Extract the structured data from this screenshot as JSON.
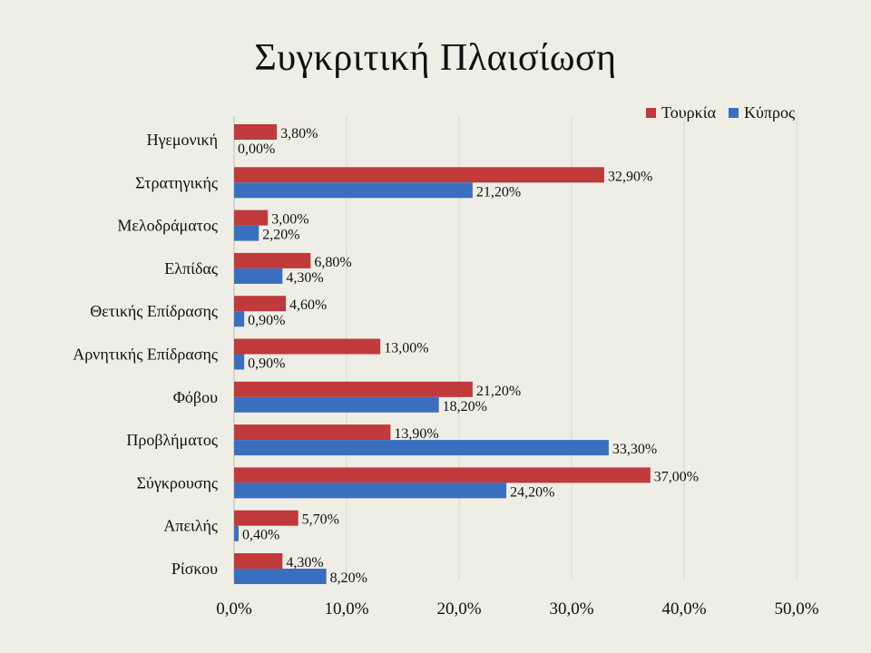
{
  "chart_data": {
    "type": "bar",
    "orientation": "horizontal",
    "title": "Συγκριτική Πλαισίωση",
    "categories": [
      "Ηγεμονική",
      "Στρατηγικής",
      "Μελοδράματος",
      "Ελπίδας",
      "Θετικής Επίδρασης",
      "Αρνητικής Επίδρασης",
      "Φόβου",
      "Προβλήματος",
      "Σύγκρουσης",
      "Απειλής",
      "Ρίσκου"
    ],
    "series": [
      {
        "name": "Τουρκία",
        "color": "#c0393b",
        "values": [
          3.8,
          32.9,
          3.0,
          6.8,
          4.6,
          13.0,
          21.2,
          13.9,
          37.0,
          5.7,
          4.3
        ],
        "labels": [
          "3,80%",
          "32,90%",
          "3,00%",
          "6,80%",
          "4,60%",
          "13,00%",
          "21,20%",
          "13,90%",
          "37,00%",
          "5,70%",
          "4,30%"
        ]
      },
      {
        "name": "Κύπρος",
        "color": "#3a6fc0",
        "values": [
          0.0,
          21.2,
          2.2,
          4.3,
          0.9,
          0.9,
          18.2,
          33.3,
          24.2,
          0.4,
          8.2
        ],
        "labels": [
          "0,00%",
          "21,20%",
          "2,20%",
          "4,30%",
          "0,90%",
          "0,90%",
          "18,20%",
          "33,30%",
          "24,20%",
          "0,40%",
          "8,20%"
        ]
      }
    ],
    "xlim": [
      0,
      50
    ],
    "xticks": [
      "0,0%",
      "10,0%",
      "20,0%",
      "30,0%",
      "40,0%",
      "50,0%"
    ],
    "grid": true,
    "legend_position": "top-right"
  }
}
